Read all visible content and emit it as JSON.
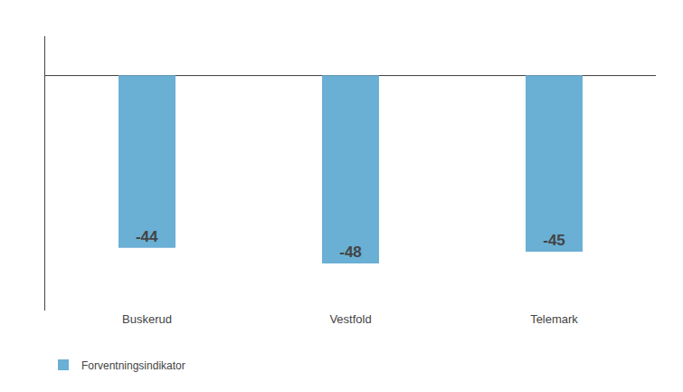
{
  "chart_data": {
    "type": "bar",
    "categories": [
      "Buskerud",
      "Vestfold",
      "Telemark"
    ],
    "series": [
      {
        "name": "Forventningsindikator",
        "color": "#6aafd4",
        "values": [
          -44,
          -48,
          -45
        ]
      }
    ],
    "ylim": [
      -60,
      10
    ],
    "grid": false,
    "legend": "lower left",
    "data_labels": true,
    "tick_labels": "x"
  }
}
